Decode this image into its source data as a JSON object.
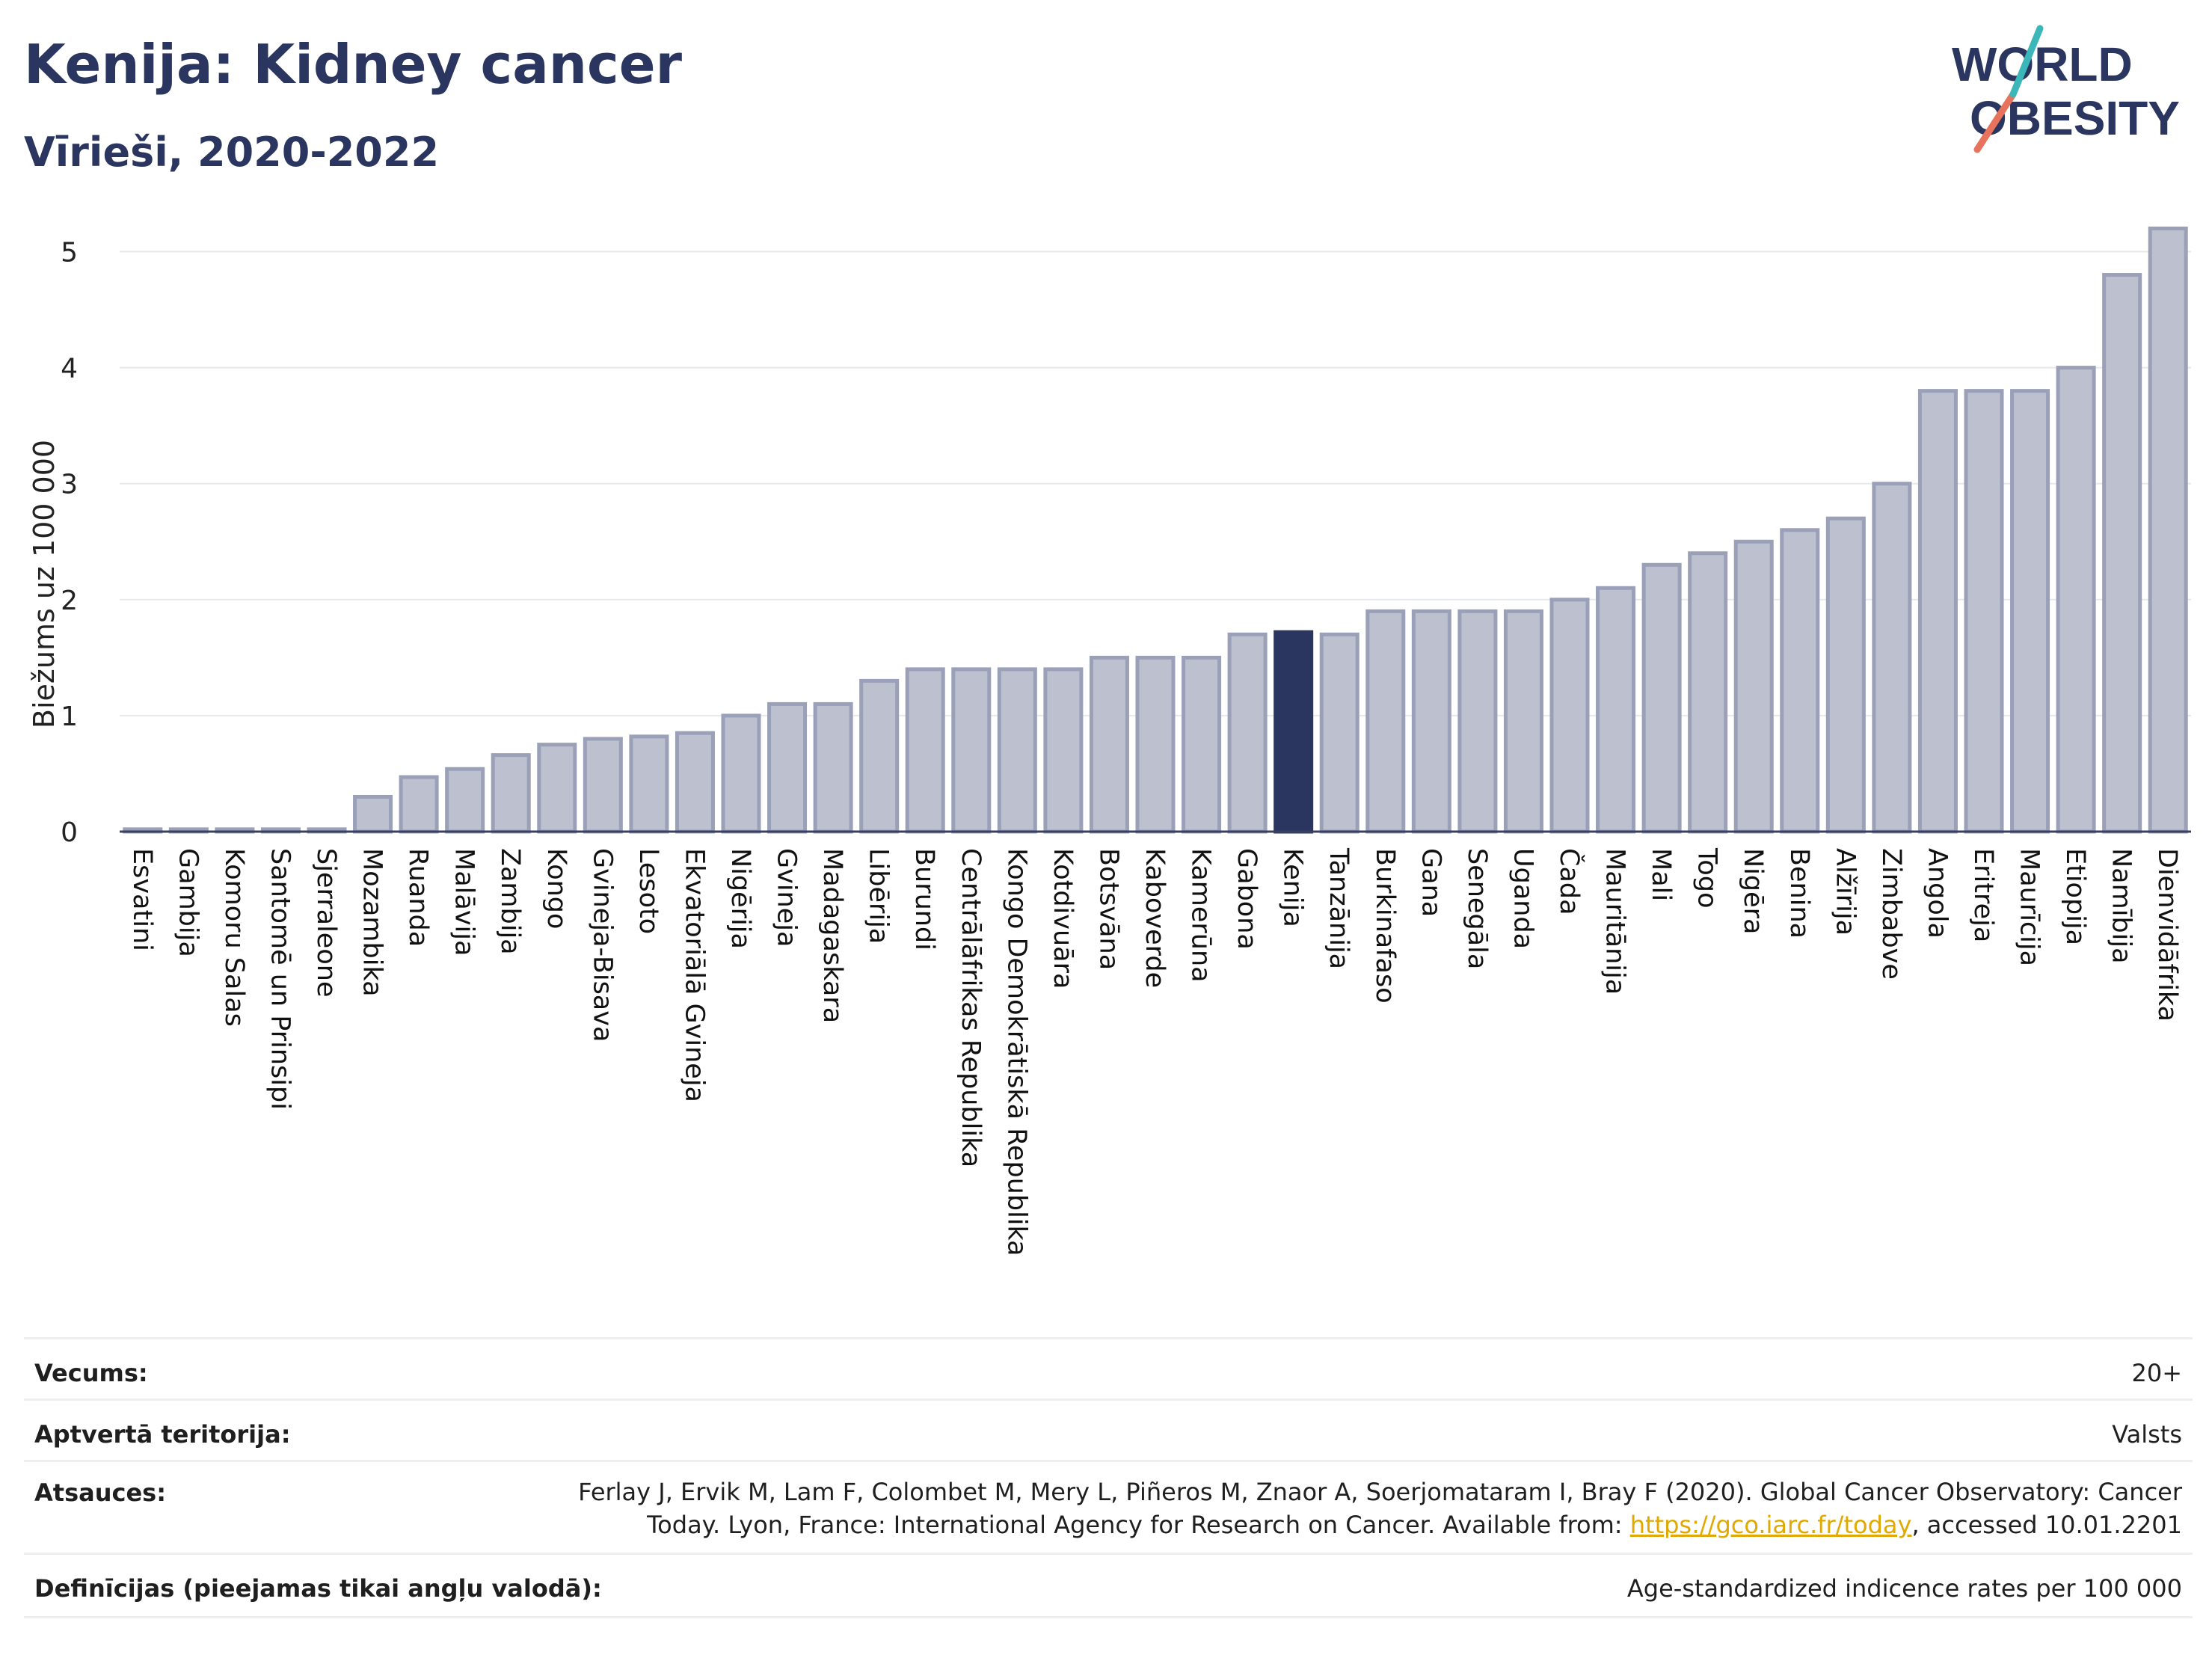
{
  "header": {
    "title": "Kenija: Kidney cancer",
    "subtitle": "Vīrieši, 2020-2022",
    "logo_line1": "WORLD",
    "logo_line2": "OBESITY"
  },
  "colors": {
    "bar": "#bcc0cf",
    "bar_edge": "#9aa0b8",
    "highlight": "#2a3560",
    "title": "#2a3560",
    "grid": "#e6e8ec",
    "logo_teal": "#3bb6b9",
    "logo_coral": "#e8735d",
    "link": "#e0a800"
  },
  "chart_data": {
    "type": "bar",
    "ylabel": "Biežums uz 100 000",
    "ylim": [
      0,
      5.3
    ],
    "yticks": [
      0,
      1,
      2,
      3,
      4,
      5
    ],
    "grid": true,
    "highlight": "Kenija",
    "categories": [
      "Esvatini",
      "Gambija",
      "Komoru Salas",
      "Santomē un Prinsipi",
      "Sjerraleone",
      "Mozambika",
      "Ruanda",
      "Malāvija",
      "Zambija",
      "Kongo",
      "Gvineja-Bisava",
      "Lesoto",
      "Ekvatoriālā Gvineja",
      "Nigērija",
      "Gvineja",
      "Madagaskara",
      "Libērija",
      "Burundi",
      "Centrālāfrikas Republika",
      "Kongo Demokrātiskā Republika",
      "Kotdivuāra",
      "Botsvāna",
      "Kaboverde",
      "Kamerūna",
      "Gabona",
      "Kenija",
      "Tanzānija",
      "Burkinafaso",
      "Gana",
      "Senegāla",
      "Uganda",
      "Čada",
      "Mauritānija",
      "Mali",
      "Togo",
      "Nigēra",
      "Benina",
      "Alžīrija",
      "Zimbabve",
      "Angola",
      "Eritreja",
      "Maurīcija",
      "Etiopija",
      "Namībija",
      "Dienvidāfrika"
    ],
    "values": [
      0.02,
      0.02,
      0.02,
      0.02,
      0.02,
      0.3,
      0.47,
      0.54,
      0.66,
      0.75,
      0.8,
      0.82,
      0.85,
      1.0,
      1.1,
      1.1,
      1.3,
      1.4,
      1.4,
      1.4,
      1.4,
      1.5,
      1.5,
      1.5,
      1.7,
      1.72,
      1.7,
      1.9,
      1.9,
      1.9,
      1.9,
      2.0,
      2.1,
      2.3,
      2.4,
      2.5,
      2.6,
      2.7,
      3.0,
      3.8,
      3.8,
      3.8,
      4.0,
      4.8,
      5.2
    ]
  },
  "info": {
    "age_label": "Vecums:",
    "age_value": "20+",
    "coverage_label": "Aptvertā teritorija:",
    "coverage_value": "Valsts",
    "refs_label": "Atsauces:",
    "refs_text_1": "Ferlay J, Ervik M, Lam F, Colombet M, Mery L, Piñeros M, Znaor A, Soerjomataram I, Bray F (2020). Global Cancer Observatory: Cancer Today. Lyon, France: International Agency for Research on Cancer. Available from: ",
    "refs_link": "https://gco.iarc.fr/today",
    "refs_text_2": ", accessed 10.01.2201",
    "defs_label": "Definīcijas (pieejamas tikai angļu valodā):",
    "defs_value": "Age-standardized indicence rates per 100 000"
  }
}
